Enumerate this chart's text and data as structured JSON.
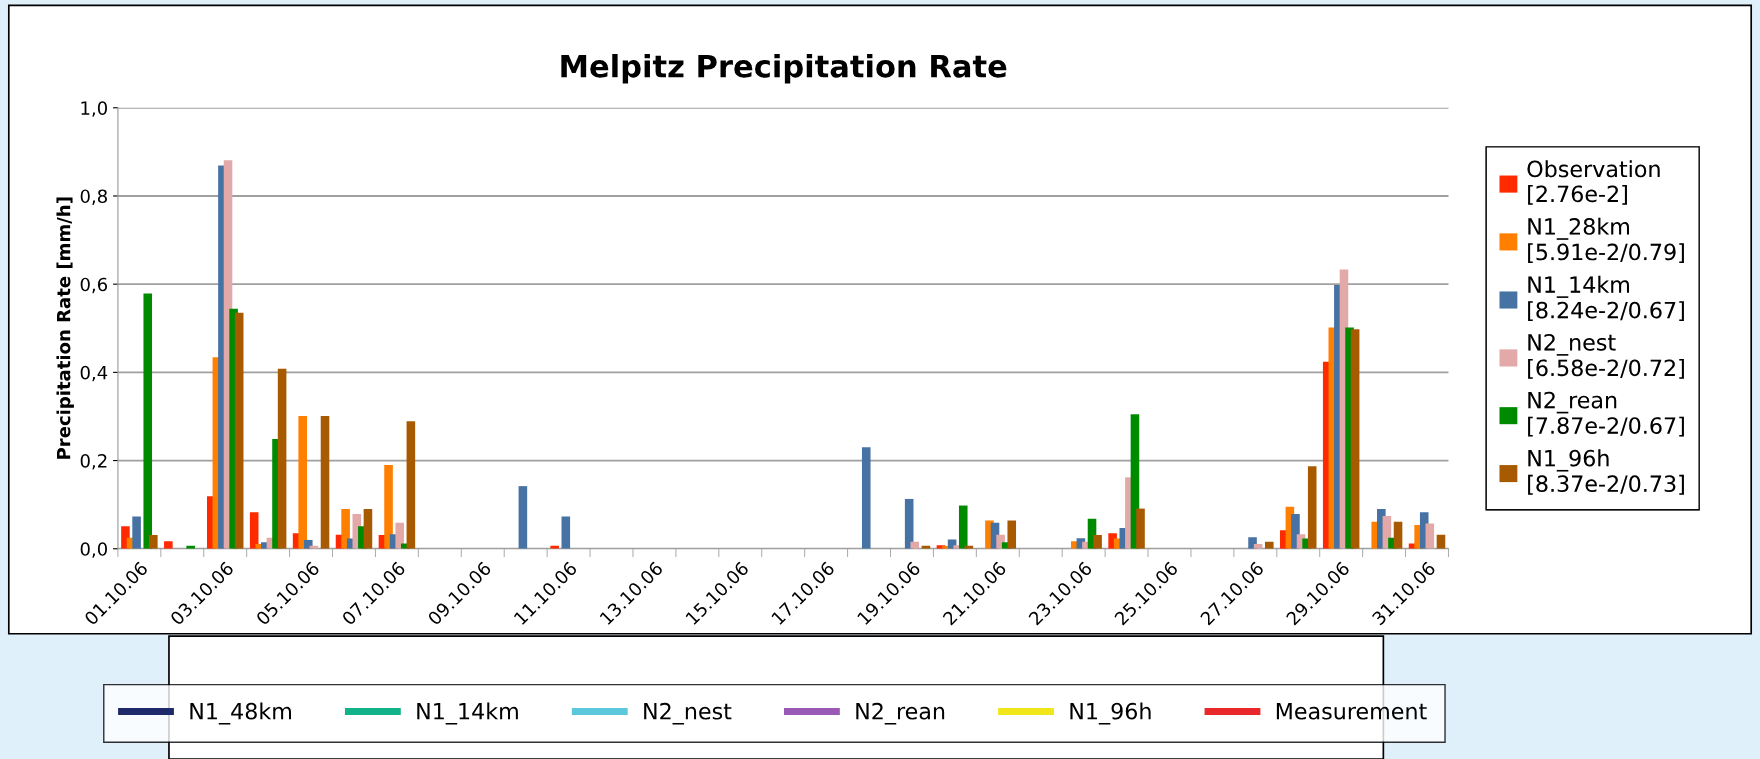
{
  "chart_data": {
    "type": "bar",
    "title": "Melpitz Precipitation Rate",
    "ylabel": "Precipitation Rate [mm/h]",
    "categories": [
      "01.10.06",
      null,
      "03.10.06",
      null,
      "05.10.06",
      null,
      "07.10.06",
      null,
      "09.10.06",
      null,
      "11.10.06",
      null,
      "13.10.06",
      null,
      "15.10.06",
      null,
      "17.10.06",
      null,
      "19.10.06",
      null,
      "21.10.06",
      null,
      "23.10.06",
      null,
      "25.10.06",
      null,
      "27.10.06",
      null,
      "29.10.06",
      null,
      "31.10.06"
    ],
    "ylim": [
      0,
      1
    ],
    "yticks": [
      {
        "value": 0,
        "label": "0,0"
      },
      {
        "value": 0.2,
        "label": "0,2"
      },
      {
        "value": 0.4,
        "label": "0,4"
      },
      {
        "value": 0.6,
        "label": "0,6"
      },
      {
        "value": 0.8,
        "label": "0,8"
      },
      {
        "value": 1,
        "label": "1,0"
      }
    ],
    "grid": "y",
    "legend": "right",
    "series": [
      {
        "name": "Observation\n[2.76e-2]",
        "color": "#ff2a00",
        "values": [
          0.051,
          0.017,
          0.119,
          0.083,
          0.035,
          0.032,
          0.031,
          0,
          0,
          0,
          0.007,
          0,
          0,
          0,
          0,
          0,
          0,
          0,
          0,
          0.008,
          0,
          0,
          null,
          0.035,
          0,
          0,
          0,
          0.042,
          0.424,
          0,
          0.012
        ]
      },
      {
        "name": "N1_28km\n[5.91e-2/0.79]",
        "color": "#ff7f00",
        "values": [
          0.025,
          0,
          0.434,
          0.011,
          0.301,
          0.09,
          0.19,
          0,
          0,
          0,
          0,
          0,
          0,
          0,
          0,
          0,
          0,
          0,
          null,
          0.006,
          0.064,
          0,
          0.017,
          0.023,
          0,
          0,
          0,
          0.095,
          0.502,
          0.061,
          0.054
        ]
      },
      {
        "name": "N1_14km\n[8.24e-2/0.67]",
        "color": "#4672a4",
        "values": [
          0.073,
          0,
          0.869,
          0.015,
          0.02,
          0.023,
          0.033,
          0,
          0,
          0.142,
          0.073,
          0,
          0,
          0,
          0,
          0,
          0,
          0.23,
          0.113,
          0.021,
          0.059,
          0,
          0.024,
          0.047,
          0,
          0,
          0.026,
          0.079,
          0.598,
          0.09,
          0.083
        ]
      },
      {
        "name": "N2_nest\n[6.58e-2/0.72]",
        "color": "#e2a9a8",
        "values": [
          0,
          0,
          0.881,
          0.025,
          0.007,
          0.079,
          0.059,
          0,
          0,
          0,
          0,
          0,
          0,
          0,
          0,
          0,
          0,
          0,
          0.016,
          0.008,
          0.032,
          0,
          0.016,
          0.162,
          0,
          0,
          0.011,
          0.033,
          0.633,
          0.074,
          0.057
        ]
      },
      {
        "name": "N2_rean\n[7.87e-2/0.67]",
        "color": "#008a00",
        "values": [
          0.579,
          0.007,
          0.544,
          0.249,
          0,
          0.051,
          0.012,
          0,
          0,
          0,
          0,
          0,
          0,
          0,
          0,
          0,
          0,
          0,
          0,
          0.098,
          0.015,
          0,
          0.068,
          0.305,
          0,
          0,
          0,
          0.023,
          0.502,
          0.025,
          null
        ]
      },
      {
        "name": "N1_96h\n[8.37e-2/0.73]",
        "color": "#a85a00",
        "values": [
          0.031,
          0,
          0.535,
          0.408,
          0.301,
          0.09,
          0.289,
          0,
          0,
          0,
          0,
          0,
          0,
          0,
          0,
          0,
          0,
          0,
          0.007,
          0.007,
          0.064,
          0,
          0.031,
          0.091,
          0,
          0,
          0.016,
          0.187,
          0.498,
          0.061,
          0.032
        ]
      },
      {
        "type": "line",
        "name": "N1_48km",
        "color": "#1f2a6b",
        "values": [
          null,
          null,
          null,
          null,
          null,
          null,
          null,
          null,
          null,
          null,
          null,
          null,
          null,
          null,
          null,
          null,
          null,
          null,
          null,
          null,
          null,
          null,
          null,
          null,
          null,
          null,
          null,
          null,
          null,
          null,
          null
        ]
      },
      {
        "type": "line",
        "name": "N1_14km",
        "color": "#12b38a",
        "values": [
          null,
          null,
          null,
          null,
          null,
          null,
          null,
          null,
          null,
          null,
          null,
          null,
          null,
          null,
          null,
          null,
          null,
          null,
          null,
          null,
          null,
          null,
          null,
          null,
          null,
          null,
          null,
          null,
          null,
          null,
          null
        ]
      },
      {
        "type": "line",
        "name": "N2_nest",
        "color": "#5bc8dc",
        "values": [
          null,
          null,
          null,
          null,
          null,
          null,
          null,
          null,
          null,
          null,
          null,
          null,
          null,
          null,
          null,
          null,
          null,
          null,
          null,
          null,
          null,
          null,
          null,
          null,
          null,
          null,
          null,
          null,
          null,
          null,
          null
        ]
      },
      {
        "type": "line",
        "name": "N2_rean",
        "color": "#9b59b6",
        "values": [
          null,
          null,
          null,
          null,
          null,
          null,
          null,
          null,
          null,
          null,
          null,
          null,
          null,
          null,
          null,
          null,
          null,
          null,
          null,
          null,
          null,
          null,
          null,
          null,
          null,
          null,
          null,
          null,
          null,
          null,
          null
        ]
      },
      {
        "type": "line",
        "name": "N1_96h",
        "color": "#f0e619",
        "values": [
          null,
          null,
          null,
          null,
          null,
          null,
          null,
          null,
          null,
          null,
          null,
          null,
          null,
          null,
          null,
          null,
          null,
          null,
          null,
          null,
          null,
          null,
          null,
          null,
          null,
          null,
          null,
          null,
          null,
          null,
          null
        ]
      },
      {
        "type": "line",
        "name": "Measurement",
        "color": "#e8282b",
        "values": [
          null,
          null,
          null,
          null,
          null,
          null,
          null,
          null,
          null,
          null,
          null,
          null,
          null,
          null,
          null,
          null,
          null,
          null,
          null,
          null,
          null,
          null,
          null,
          null,
          null,
          null,
          null,
          null,
          null,
          null,
          null
        ]
      }
    ]
  }
}
